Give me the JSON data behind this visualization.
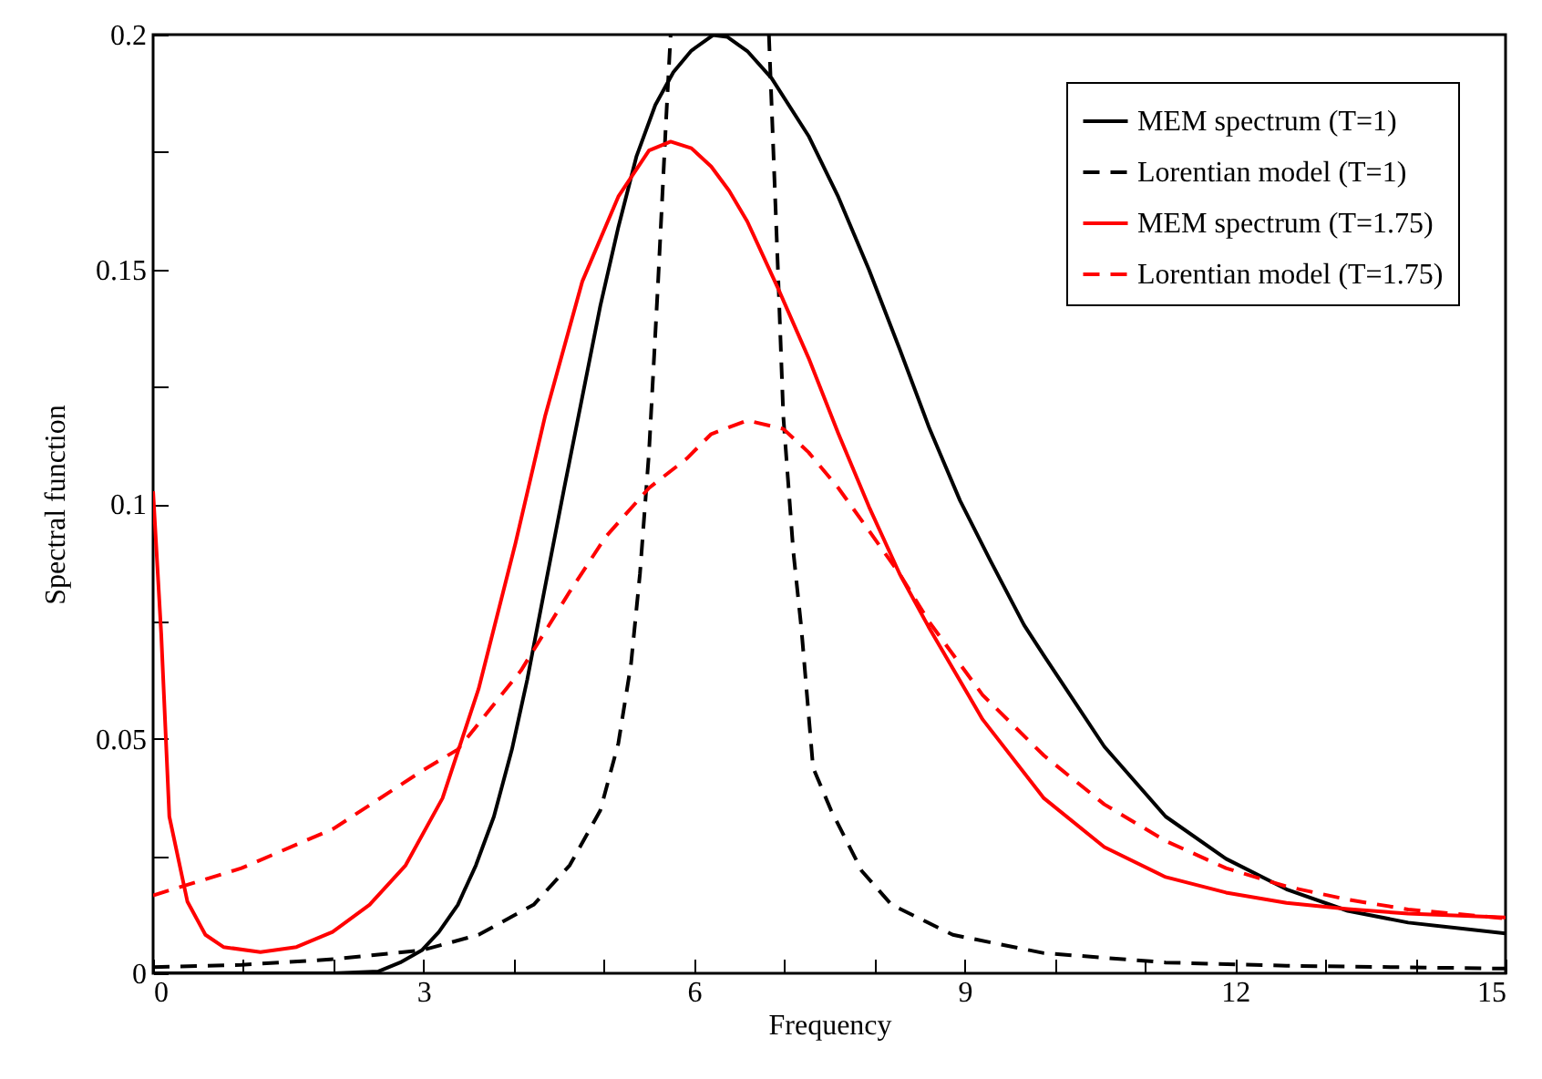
{
  "chart_data": {
    "type": "line",
    "xlabel": "Frequency",
    "ylabel": "Spectral function",
    "xlim": [
      0,
      15
    ],
    "ylim": [
      0,
      0.2
    ],
    "xticks": [
      0,
      {
        "value": 1,
        "label": null
      },
      {
        "value": 2,
        "label": null
      },
      3,
      {
        "value": 4,
        "label": null
      },
      {
        "value": 5,
        "label": null
      },
      6,
      {
        "value": 7,
        "label": null
      },
      {
        "value": 8,
        "label": null
      },
      9,
      {
        "value": 10,
        "label": null
      },
      {
        "value": 11,
        "label": null
      },
      12,
      {
        "value": 13,
        "label": null
      },
      {
        "value": 14,
        "label": null
      },
      15
    ],
    "yticks": [
      0,
      {
        "value": 0.025,
        "label": null
      },
      0.05,
      {
        "value": 0.075,
        "label": null
      },
      0.1,
      {
        "value": 0.125,
        "label": null
      },
      0.15,
      {
        "value": 0.175,
        "label": null
      },
      0.2
    ],
    "grid": false,
    "legend": "top right",
    "marker": "none",
    "series": [
      {
        "name": "MEM spectrum (T=1)",
        "color": "#000000",
        "line_style": "solid",
        "x": [
          0,
          2,
          2.5,
          2.74,
          2.98,
          3.17,
          3.38,
          3.58,
          3.78,
          3.98,
          4.15,
          4.35,
          4.56,
          4.76,
          4.96,
          5.16,
          5.36,
          5.57,
          5.77,
          5.97,
          6.21,
          6.37,
          6.59,
          6.86,
          7.27,
          7.6,
          7.94,
          8.28,
          8.61,
          8.95,
          9.29,
          9.66,
          9.88,
          10.55,
          11.23,
          11.9,
          12.57,
          13.25,
          13.92,
          15
        ],
        "values": [
          0,
          0,
          0.0004,
          0.0023,
          0.0049,
          0.0088,
          0.0146,
          0.023,
          0.0334,
          0.0477,
          0.0626,
          0.0826,
          0.1034,
          0.1228,
          0.1422,
          0.159,
          0.174,
          0.185,
          0.192,
          0.1966,
          0.1999,
          0.1995,
          0.1965,
          0.1907,
          0.1784,
          0.1654,
          0.1499,
          0.133,
          0.1161,
          0.1007,
          0.0878,
          0.0742,
          0.0677,
          0.0483,
          0.0334,
          0.0244,
          0.0179,
          0.0133,
          0.0108,
          0.0085
        ]
      },
      {
        "name": "Lorentian model (T=1)",
        "color": "#000000",
        "line_style": "dashed",
        "x": [
          0,
          0.98,
          2,
          2.98,
          3.61,
          4.22,
          4.62,
          4.96,
          5.16,
          5.3,
          5.4,
          5.5,
          5.6,
          5.69,
          5.74,
          6.3,
          6.83,
          6.93,
          6.99,
          7.1,
          7.19,
          7.32,
          7.52,
          7.86,
          8.19,
          8.87,
          9.88,
          11.23,
          12.57,
          15
        ],
        "values": [
          0.0013,
          0.0018,
          0.003,
          0.0049,
          0.0082,
          0.0146,
          0.023,
          0.0347,
          0.049,
          0.0658,
          0.0852,
          0.111,
          0.147,
          0.182,
          0.2,
          null,
          0.2,
          0.1499,
          0.1186,
          0.09,
          0.0735,
          0.0438,
          0.0347,
          0.0218,
          0.0146,
          0.0082,
          0.0043,
          0.0023,
          0.0016,
          0.001
        ]
      },
      {
        "name": "MEM spectrum (T=1.75)",
        "color": "#ff0000",
        "line_style": "solid",
        "x": [
          0,
          0.09,
          0.18,
          0.38,
          0.58,
          0.78,
          1.19,
          1.59,
          1.99,
          2.4,
          2.8,
          3.21,
          3.61,
          4.02,
          4.35,
          4.76,
          5.16,
          5.5,
          5.74,
          5.97,
          6.19,
          6.39,
          6.59,
          6.93,
          7.27,
          7.6,
          7.94,
          8.28,
          8.61,
          9.2,
          9.88,
          10.55,
          11.23,
          11.9,
          12.57,
          13.25,
          13.92,
          15
        ],
        "values": [
          0.1027,
          0.0723,
          0.0334,
          0.0153,
          0.0082,
          0.0056,
          0.0045,
          0.0056,
          0.0088,
          0.0146,
          0.023,
          0.0373,
          0.0606,
          0.0917,
          0.1189,
          0.1474,
          0.1655,
          0.1753,
          0.1772,
          0.1758,
          0.1719,
          0.1667,
          0.1602,
          0.146,
          0.1311,
          0.115,
          0.0994,
          0.0851,
          0.0735,
          0.0541,
          0.0373,
          0.0269,
          0.0205,
          0.0172,
          0.015,
          0.0137,
          0.0127,
          0.0119
        ]
      },
      {
        "name": "Lorentian model (T=1.75)",
        "color": "#ff0000",
        "line_style": "dashed",
        "x": [
          0,
          0.98,
          2,
          2.98,
          3.38,
          4.08,
          4.62,
          5.02,
          5.5,
          5.92,
          6.19,
          6.59,
          6.99,
          7.27,
          7.6,
          7.94,
          8.28,
          8.61,
          9.2,
          9.88,
          10.55,
          11.23,
          11.9,
          12.57,
          13.25,
          13.92,
          15
        ],
        "values": [
          0.0166,
          0.0224,
          0.0308,
          0.0431,
          0.0477,
          0.0645,
          0.0813,
          0.093,
          0.1034,
          0.1097,
          0.1149,
          0.1178,
          0.116,
          0.111,
          0.1034,
          0.0943,
          0.0851,
          0.0748,
          0.0593,
          0.0464,
          0.036,
          0.0282,
          0.0224,
          0.0185,
          0.0157,
          0.0136,
          0.0117
        ]
      }
    ]
  }
}
